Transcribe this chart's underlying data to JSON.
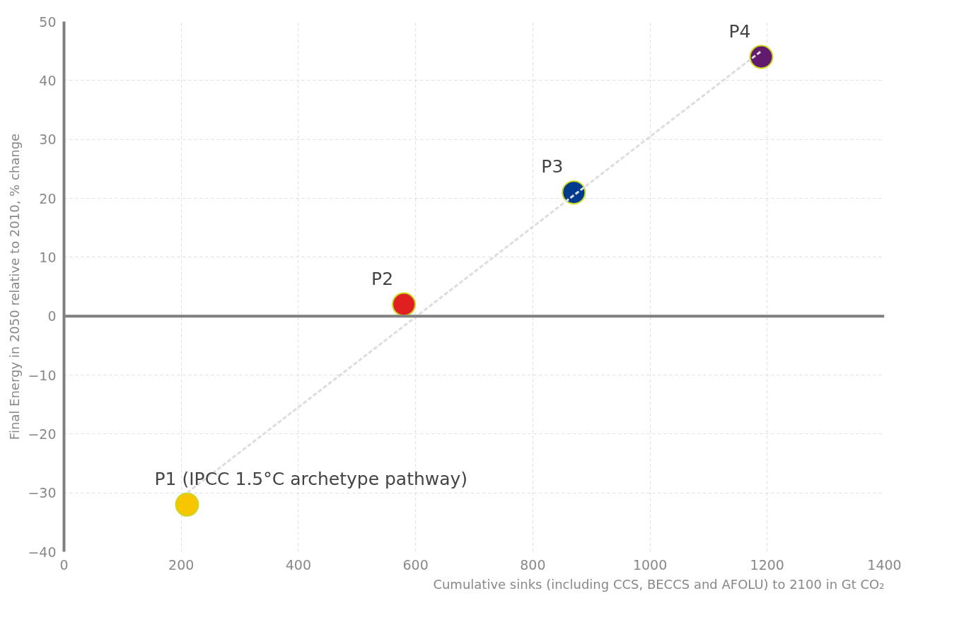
{
  "chart_data": {
    "type": "scatter",
    "xlabel": "Cumulative sinks (including CCS, BECCS and AFOLU) to 2100 in Gt CO₂",
    "ylabel": "Final Energy in 2050 relative to 2010, % change",
    "series": [
      {
        "x": [
          210,
          580,
          870,
          1190
        ],
        "values": [
          -32,
          2,
          21,
          44
        ],
        "colors": [
          "#f7c600",
          "#e02020",
          "#003a8c",
          "#621a6e"
        ],
        "marker": "circle"
      },
      {
        "type": "line",
        "color": "#dddddd",
        "line_style": "dashed",
        "x": [
          210,
          1190
        ],
        "values": [
          -30,
          45
        ]
      }
    ],
    "annotations": [
      {
        "text": "P1 (IPCC 1.5°C archetype pathway)",
        "x": 210,
        "y": -32
      },
      {
        "text": "P2",
        "x": 580,
        "y": 2
      },
      {
        "text": "P3",
        "x": 870,
        "y": 21
      },
      {
        "text": "P4",
        "x": 1190,
        "y": 44
      }
    ],
    "xlim": [
      0,
      1400
    ],
    "ylim": [
      -40,
      50
    ],
    "xticks": [
      0,
      200,
      400,
      600,
      800,
      1000,
      1200,
      1400
    ],
    "yticks": [
      -40,
      -30,
      -20,
      -10,
      0,
      10,
      20,
      30,
      40,
      50
    ],
    "ref_lines": [
      {
        "axis": "y",
        "value": 0,
        "color": "#808080",
        "line_style": "solid"
      }
    ],
    "grid": true
  }
}
